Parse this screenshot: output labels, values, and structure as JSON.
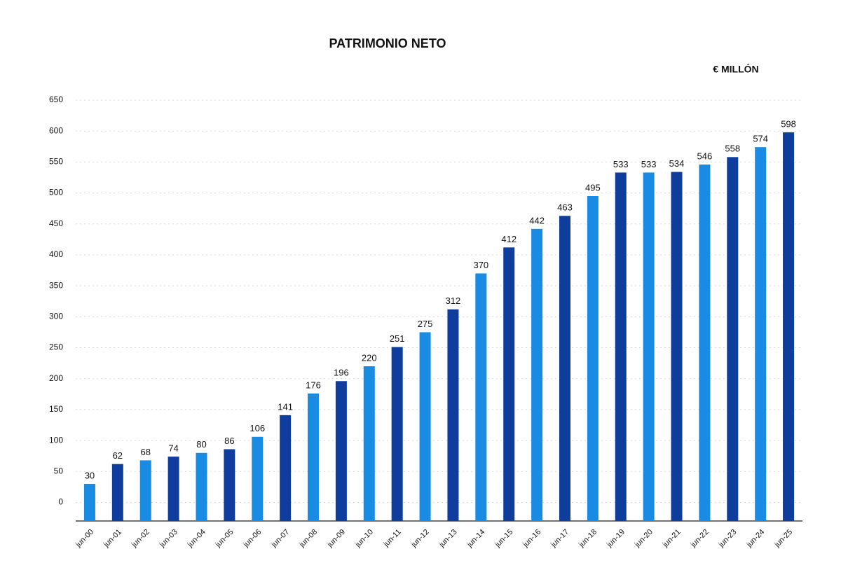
{
  "chart_data": {
    "type": "bar",
    "title": "PATRIMONIO NETO",
    "unit_label": "€ MILLÓN",
    "categories": [
      "jun-00",
      "jun-01",
      "jun-02",
      "jun-03",
      "jun-04",
      "jun-05",
      "jun-06",
      "jun-07",
      "jun-08",
      "jun-09",
      "jun-10",
      "jun-11",
      "jun-12",
      "jun-13",
      "jun-14",
      "jun-15",
      "jun-16",
      "jun-17",
      "jun-18",
      "jun-19",
      "jun-20",
      "jun-21",
      "jun-22",
      "jun-23",
      "jun-24",
      "jun-25"
    ],
    "values": [
      30,
      62,
      68,
      74,
      80,
      86,
      106,
      141,
      176,
      196,
      220,
      251,
      275,
      312,
      370,
      412,
      442,
      463,
      495,
      533,
      533,
      534,
      546,
      558,
      574,
      598
    ],
    "colors": [
      "#1a8be3",
      "#0f3d9e",
      "#1a8be3",
      "#0f3d9e",
      "#1a8be3",
      "#0f3d9e",
      "#1a8be3",
      "#0f3d9e",
      "#1a8be3",
      "#0f3d9e",
      "#1a8be3",
      "#0f3d9e",
      "#1a8be3",
      "#0f3d9e",
      "#1a8be3",
      "#0f3d9e",
      "#1a8be3",
      "#0f3d9e",
      "#1a8be3",
      "#0f3d9e",
      "#1a8be3",
      "#0f3d9e",
      "#1a8be3",
      "#0f3d9e",
      "#1a8be3",
      "#0f3d9e"
    ],
    "ylim": [
      -30,
      650
    ],
    "yticks": [
      0,
      50,
      100,
      150,
      200,
      250,
      300,
      350,
      400,
      450,
      500,
      550,
      600,
      650
    ],
    "grid": true
  }
}
